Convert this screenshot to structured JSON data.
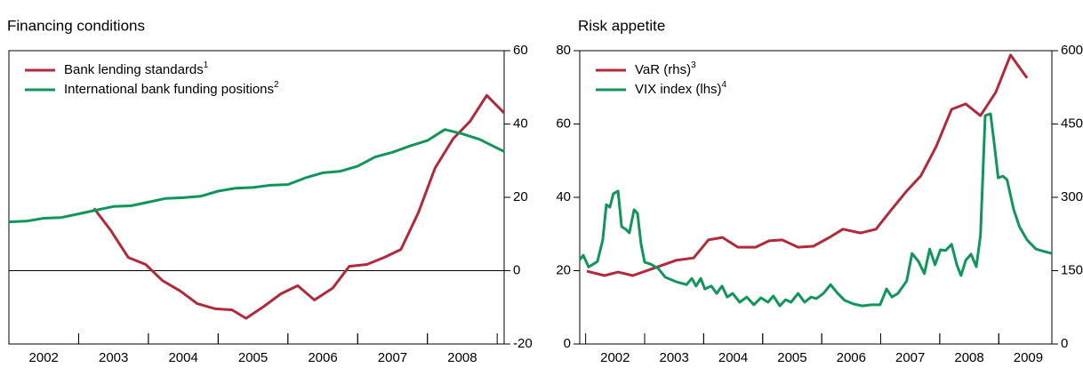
{
  "chart_data": [
    {
      "type": "line",
      "title": "Financing conditions",
      "y_side": "right",
      "xlim": [
        2002,
        2009.1
      ],
      "ylim": [
        -20,
        60
      ],
      "yticks": [
        -20,
        0,
        20,
        40,
        60
      ],
      "zero_line": true,
      "xticks": [
        {
          "value": 2002.5,
          "label": "2002"
        },
        {
          "value": 2003.5,
          "label": "2003"
        },
        {
          "value": 2004.5,
          "label": "2004"
        },
        {
          "value": 2005.5,
          "label": "2005"
        },
        {
          "value": 2006.5,
          "label": "2006"
        },
        {
          "value": 2007.5,
          "label": "2007"
        },
        {
          "value": 2008.5,
          "label": "2008"
        }
      ],
      "series": [
        {
          "name": "Bank lending standards",
          "note": "1",
          "color": "#b02a3c",
          "x": [
            2003.22,
            2003.46,
            2003.71,
            2003.96,
            2004.2,
            2004.46,
            2004.7,
            2004.96,
            2005.2,
            2005.4,
            2005.66,
            2005.9,
            2006.14,
            2006.38,
            2006.64,
            2006.88,
            2007.13,
            2007.38,
            2007.62,
            2007.87,
            2008.11,
            2008.37,
            2008.61,
            2008.85,
            2009.1
          ],
          "values": [
            17,
            11,
            3.6,
            1.7,
            -2.7,
            -5.6,
            -9,
            -10.4,
            -10.7,
            -13,
            -9.7,
            -6.3,
            -4.1,
            -8,
            -4.8,
            1.2,
            1.7,
            3.6,
            5.8,
            15.8,
            28,
            36,
            40.7,
            47.8,
            43
          ]
        },
        {
          "name": "International bank funding positions",
          "note": "2",
          "color": "#12955a",
          "x": [
            2002.0,
            2002.25,
            2002.5,
            2002.75,
            2003.0,
            2003.25,
            2003.5,
            2003.75,
            2004.0,
            2004.25,
            2004.5,
            2004.75,
            2005.0,
            2005.25,
            2005.5,
            2005.75,
            2006.0,
            2006.25,
            2006.5,
            2006.75,
            2007.0,
            2007.25,
            2007.5,
            2007.75,
            2008.0,
            2008.25,
            2008.5,
            2008.75,
            2009.0,
            2009.1
          ],
          "values": [
            13.3,
            13.5,
            14.3,
            14.5,
            15.5,
            16.5,
            17.5,
            17.7,
            18.7,
            19.7,
            19.9,
            20.3,
            21.7,
            22.5,
            22.7,
            23.3,
            23.5,
            25.3,
            26.7,
            27.1,
            28.5,
            31,
            32.3,
            34,
            35.5,
            38.5,
            37.3,
            35.8,
            33.4,
            32.5
          ]
        }
      ]
    },
    {
      "type": "line",
      "title": "Risk appetite",
      "y_side": "left",
      "xlim": [
        2001.9,
        2009.9
      ],
      "ylim": [
        0,
        80
      ],
      "yticks": [
        0,
        20,
        40,
        60,
        80
      ],
      "y2lim": [
        0,
        600
      ],
      "y2ticks": [
        0,
        150,
        300,
        450,
        600
      ],
      "xticks": [
        {
          "value": 2002.5,
          "label": "2002"
        },
        {
          "value": 2003.5,
          "label": "2003"
        },
        {
          "value": 2004.5,
          "label": "2004"
        },
        {
          "value": 2005.5,
          "label": "2005"
        },
        {
          "value": 2006.5,
          "label": "2006"
        },
        {
          "value": 2007.5,
          "label": "2007"
        },
        {
          "value": 2008.5,
          "label": "2008"
        },
        {
          "value": 2009.5,
          "label": "2009"
        }
      ],
      "series": [
        {
          "name": "VaR (rhs)",
          "note": "3",
          "color": "#b02a3c",
          "axis": "y2",
          "x": [
            2002.02,
            2002.32,
            2002.55,
            2002.8,
            2003.15,
            2003.53,
            2003.83,
            2004.08,
            2004.32,
            2004.58,
            2004.88,
            2005.11,
            2005.33,
            2005.6,
            2005.86,
            2006.13,
            2006.36,
            2006.66,
            2006.92,
            2007.19,
            2007.44,
            2007.68,
            2007.94,
            2008.2,
            2008.44,
            2008.69,
            2008.95,
            2009.2,
            2009.48
          ],
          "values": [
            149,
            140,
            147,
            140,
            155,
            171,
            176,
            213,
            218,
            198,
            198,
            211,
            213,
            198,
            200,
            218,
            235,
            227,
            235,
            276,
            313,
            344,
            404,
            480,
            491,
            467,
            515,
            591,
            544
          ]
        },
        {
          "name": "VIX index (lhs)",
          "note": "4",
          "color": "#12955a",
          "x": [
            2001.9,
            2001.96,
            2002.05,
            2002.2,
            2002.29,
            2002.35,
            2002.41,
            2002.47,
            2002.55,
            2002.61,
            2002.68,
            2002.74,
            2002.82,
            2002.88,
            2002.94,
            2003.0,
            2003.1,
            2003.23,
            2003.35,
            2003.53,
            2003.71,
            2003.8,
            2003.87,
            2003.95,
            2004.02,
            2004.13,
            2004.22,
            2004.31,
            2004.4,
            2004.49,
            2004.61,
            2004.73,
            2004.85,
            2004.97,
            2005.09,
            2005.18,
            2005.29,
            2005.39,
            2005.48,
            2005.6,
            2005.71,
            2005.82,
            2005.91,
            2006.03,
            2006.15,
            2006.27,
            2006.39,
            2006.54,
            2006.69,
            2006.84,
            2006.99,
            2007.1,
            2007.19,
            2007.29,
            2007.44,
            2007.53,
            2007.64,
            2007.74,
            2007.83,
            2007.92,
            2008.01,
            2008.1,
            2008.2,
            2008.29,
            2008.36,
            2008.44,
            2008.53,
            2008.62,
            2008.69,
            2008.77,
            2008.86,
            2008.92,
            2008.99,
            2009.07,
            2009.14,
            2009.25,
            2009.35,
            2009.48,
            2009.63,
            2009.78,
            2009.9
          ],
          "values": [
            23,
            24.2,
            21,
            22.5,
            28.4,
            38,
            37.3,
            41,
            41.7,
            32,
            31.3,
            30.3,
            36.6,
            35.6,
            27.2,
            22.3,
            21.8,
            20.6,
            18.2,
            17,
            16.2,
            17.9,
            15.8,
            17.9,
            15,
            15.8,
            13.8,
            15.8,
            12.8,
            13.8,
            11.4,
            12.8,
            10.7,
            12.6,
            11.4,
            13.1,
            10.4,
            12.1,
            11.4,
            13.8,
            11.4,
            12.8,
            12.4,
            13.8,
            16.2,
            13.8,
            11.9,
            10.9,
            10.4,
            10.7,
            10.7,
            15,
            12.8,
            13.8,
            17.2,
            24.7,
            22.5,
            19.2,
            25.9,
            21.6,
            25.7,
            25.5,
            27.2,
            21.6,
            18.7,
            22.8,
            24.5,
            21.1,
            29.6,
            62.3,
            62.8,
            55,
            45.3,
            45.8,
            44.8,
            36.8,
            32,
            28.4,
            25.9,
            25.2,
            24.7
          ]
        }
      ]
    }
  ]
}
